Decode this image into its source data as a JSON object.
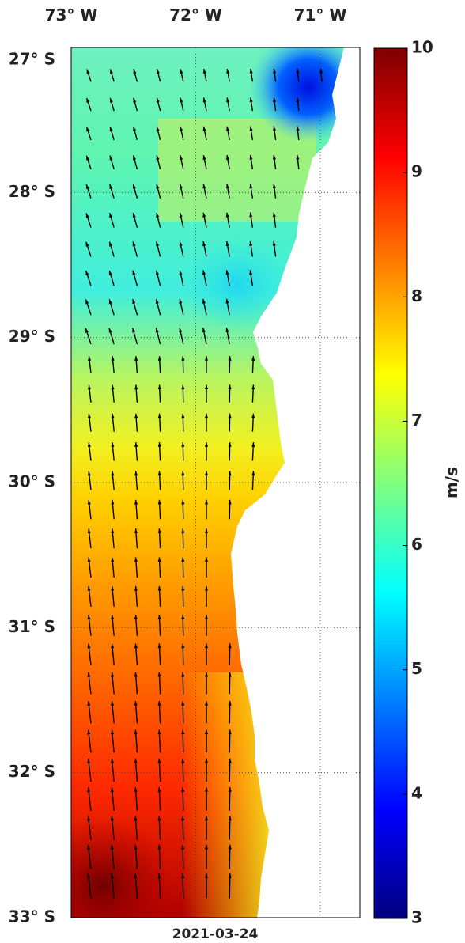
{
  "map": {
    "lon_ticks": [
      {
        "value": -73,
        "label": "73° W"
      },
      {
        "value": -72,
        "label": "72° W"
      },
      {
        "value": -71,
        "label": "71° W"
      }
    ],
    "lat_ticks": [
      {
        "value": -27,
        "label": "27° S"
      },
      {
        "value": -28,
        "label": "28° S"
      },
      {
        "value": -29,
        "label": "29° S"
      },
      {
        "value": -30,
        "label": "30° S"
      },
      {
        "value": -31,
        "label": "31° S"
      },
      {
        "value": -32,
        "label": "32° S"
      },
      {
        "value": -33,
        "label": "33° S"
      }
    ],
    "lonlim": [
      -73,
      -70.7
    ],
    "latlim": [
      -27,
      -33
    ],
    "date": "2021-03-24"
  },
  "colorbar": {
    "lim": [
      3,
      10
    ],
    "ticks": [
      3,
      4,
      5,
      6,
      7,
      8,
      9,
      10
    ],
    "label": "m/s"
  }
}
